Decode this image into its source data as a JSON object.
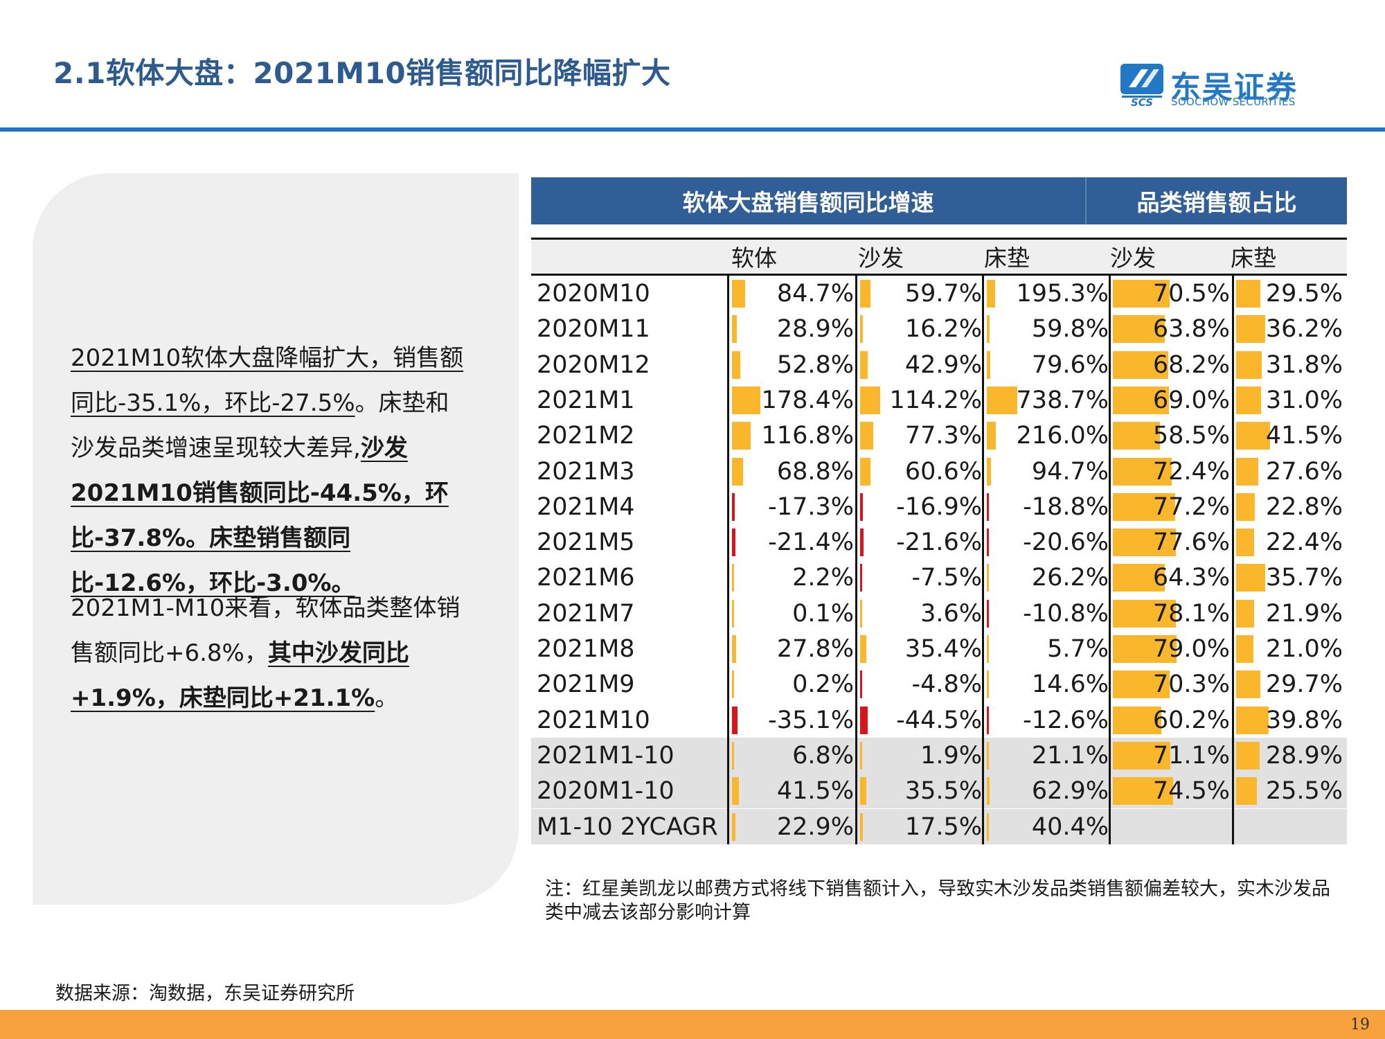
{
  "title": "2.1软体大盘：2021M10销售额同比降幅扩大",
  "logo": {
    "name": "东吴证券",
    "english": "SOOCHOW SECURITIES",
    "abbr": "SCS",
    "color": "#2378c5"
  },
  "paragraph1": {
    "seg1": "2021M10软体大盘降幅扩大，销售额同比-35.1%，环比-27.5%",
    "seg2": "。床垫和沙发品类增速呈现较大差异,",
    "seg3": "沙发2021M10销售额同比-44.5%，环比-37.8%。床垫销售额同比-12.6%，环比-3.0%。"
  },
  "paragraph2": {
    "seg1": "2021M1-M10来看，软体品类整体销售额同比+6.8%，",
    "seg2": "其中沙发同比+1.9%，床垫同比+21.1%",
    "seg3": "。"
  },
  "table": {
    "header_main": "软体大盘销售额同比增速",
    "header_side": "品类销售额占比",
    "subheaders": [
      "软体",
      "沙发",
      "床垫",
      "沙发",
      "床垫"
    ],
    "colors": {
      "positive_bar": "#fbb72c",
      "negative_bar": "#d9151b",
      "header_bg": "#2f5f96"
    },
    "rows": [
      {
        "label": "2020M10",
        "growth": [
          84.7,
          59.7,
          195.3
        ],
        "growth_text": [
          "84.7%",
          "59.7%",
          "195.3%"
        ],
        "share": [
          70.5,
          29.5
        ],
        "share_text": [
          "70.5%",
          "29.5%"
        ]
      },
      {
        "label": "2020M11",
        "growth": [
          28.9,
          16.2,
          59.8
        ],
        "growth_text": [
          "28.9%",
          "16.2%",
          "59.8%"
        ],
        "share": [
          63.8,
          36.2
        ],
        "share_text": [
          "63.8%",
          "36.2%"
        ]
      },
      {
        "label": "2020M12",
        "growth": [
          52.8,
          42.9,
          79.6
        ],
        "growth_text": [
          "52.8%",
          "42.9%",
          "79.6%"
        ],
        "share": [
          68.2,
          31.8
        ],
        "share_text": [
          "68.2%",
          "31.8%"
        ]
      },
      {
        "label": "2021M1",
        "growth": [
          178.4,
          114.2,
          738.7
        ],
        "growth_text": [
          "178.4%",
          "114.2%",
          "738.7%"
        ],
        "share": [
          69.0,
          31.0
        ],
        "share_text": [
          "69.0%",
          "31.0%"
        ]
      },
      {
        "label": "2021M2",
        "growth": [
          116.8,
          77.3,
          216.0
        ],
        "growth_text": [
          "116.8%",
          "77.3%",
          "216.0%"
        ],
        "share": [
          58.5,
          41.5
        ],
        "share_text": [
          "58.5%",
          "41.5%"
        ]
      },
      {
        "label": "2021M3",
        "growth": [
          68.8,
          60.6,
          94.7
        ],
        "growth_text": [
          "68.8%",
          "60.6%",
          "94.7%"
        ],
        "share": [
          72.4,
          27.6
        ],
        "share_text": [
          "72.4%",
          "27.6%"
        ]
      },
      {
        "label": "2021M4",
        "growth": [
          -17.3,
          -16.9,
          -18.8
        ],
        "growth_text": [
          "-17.3%",
          "-16.9%",
          "-18.8%"
        ],
        "share": [
          77.2,
          22.8
        ],
        "share_text": [
          "77.2%",
          "22.8%"
        ]
      },
      {
        "label": "2021M5",
        "growth": [
          -21.4,
          -21.6,
          -20.6
        ],
        "growth_text": [
          "-21.4%",
          "-21.6%",
          "-20.6%"
        ],
        "share": [
          77.6,
          22.4
        ],
        "share_text": [
          "77.6%",
          "22.4%"
        ]
      },
      {
        "label": "2021M6",
        "growth": [
          2.2,
          -7.5,
          26.2
        ],
        "growth_text": [
          "2.2%",
          "-7.5%",
          "26.2%"
        ],
        "share": [
          64.3,
          35.7
        ],
        "share_text": [
          "64.3%",
          "35.7%"
        ]
      },
      {
        "label": "2021M7",
        "growth": [
          0.1,
          3.6,
          -10.8
        ],
        "growth_text": [
          "0.1%",
          "3.6%",
          "-10.8%"
        ],
        "share": [
          78.1,
          21.9
        ],
        "share_text": [
          "78.1%",
          "21.9%"
        ]
      },
      {
        "label": "2021M8",
        "growth": [
          27.8,
          35.4,
          5.7
        ],
        "growth_text": [
          "27.8%",
          "35.4%",
          "5.7%"
        ],
        "share": [
          79.0,
          21.0
        ],
        "share_text": [
          "79.0%",
          "21.0%"
        ]
      },
      {
        "label": "2021M9",
        "growth": [
          0.2,
          -4.8,
          14.6
        ],
        "growth_text": [
          "0.2%",
          "-4.8%",
          "14.6%"
        ],
        "share": [
          70.3,
          29.7
        ],
        "share_text": [
          "70.3%",
          "29.7%"
        ]
      },
      {
        "label": "2021M10",
        "growth": [
          -35.1,
          -44.5,
          -12.6
        ],
        "growth_text": [
          "-35.1%",
          "-44.5%",
          "-12.6%"
        ],
        "share": [
          60.2,
          39.8
        ],
        "share_text": [
          "60.2%",
          "39.8%"
        ]
      },
      {
        "label": "2021M1-10",
        "growth": [
          6.8,
          1.9,
          21.1
        ],
        "growth_text": [
          "6.8%",
          "1.9%",
          "21.1%"
        ],
        "share": [
          71.1,
          28.9
        ],
        "share_text": [
          "71.1%",
          "28.9%"
        ]
      },
      {
        "label": "2020M1-10",
        "growth": [
          41.5,
          35.5,
          62.9
        ],
        "growth_text": [
          "41.5%",
          "35.5%",
          "62.9%"
        ],
        "share": [
          74.5,
          25.5
        ],
        "share_text": [
          "74.5%",
          "25.5%"
        ]
      },
      {
        "label": "M1-10 2YCAGR",
        "growth": [
          22.9,
          17.5,
          40.4
        ],
        "growth_text": [
          "22.9%",
          "17.5%",
          "40.4%"
        ],
        "share": null,
        "share_text": [
          "",
          ""
        ]
      }
    ]
  },
  "note": "注：红星美凯龙以邮费方式将线下销售额计入，导致实木沙发品类销售额偏差较大，实木沙发品类中减去该部分影响计算",
  "source": "数据来源：淘数据，东吴证券研究所",
  "page_number": "19"
}
